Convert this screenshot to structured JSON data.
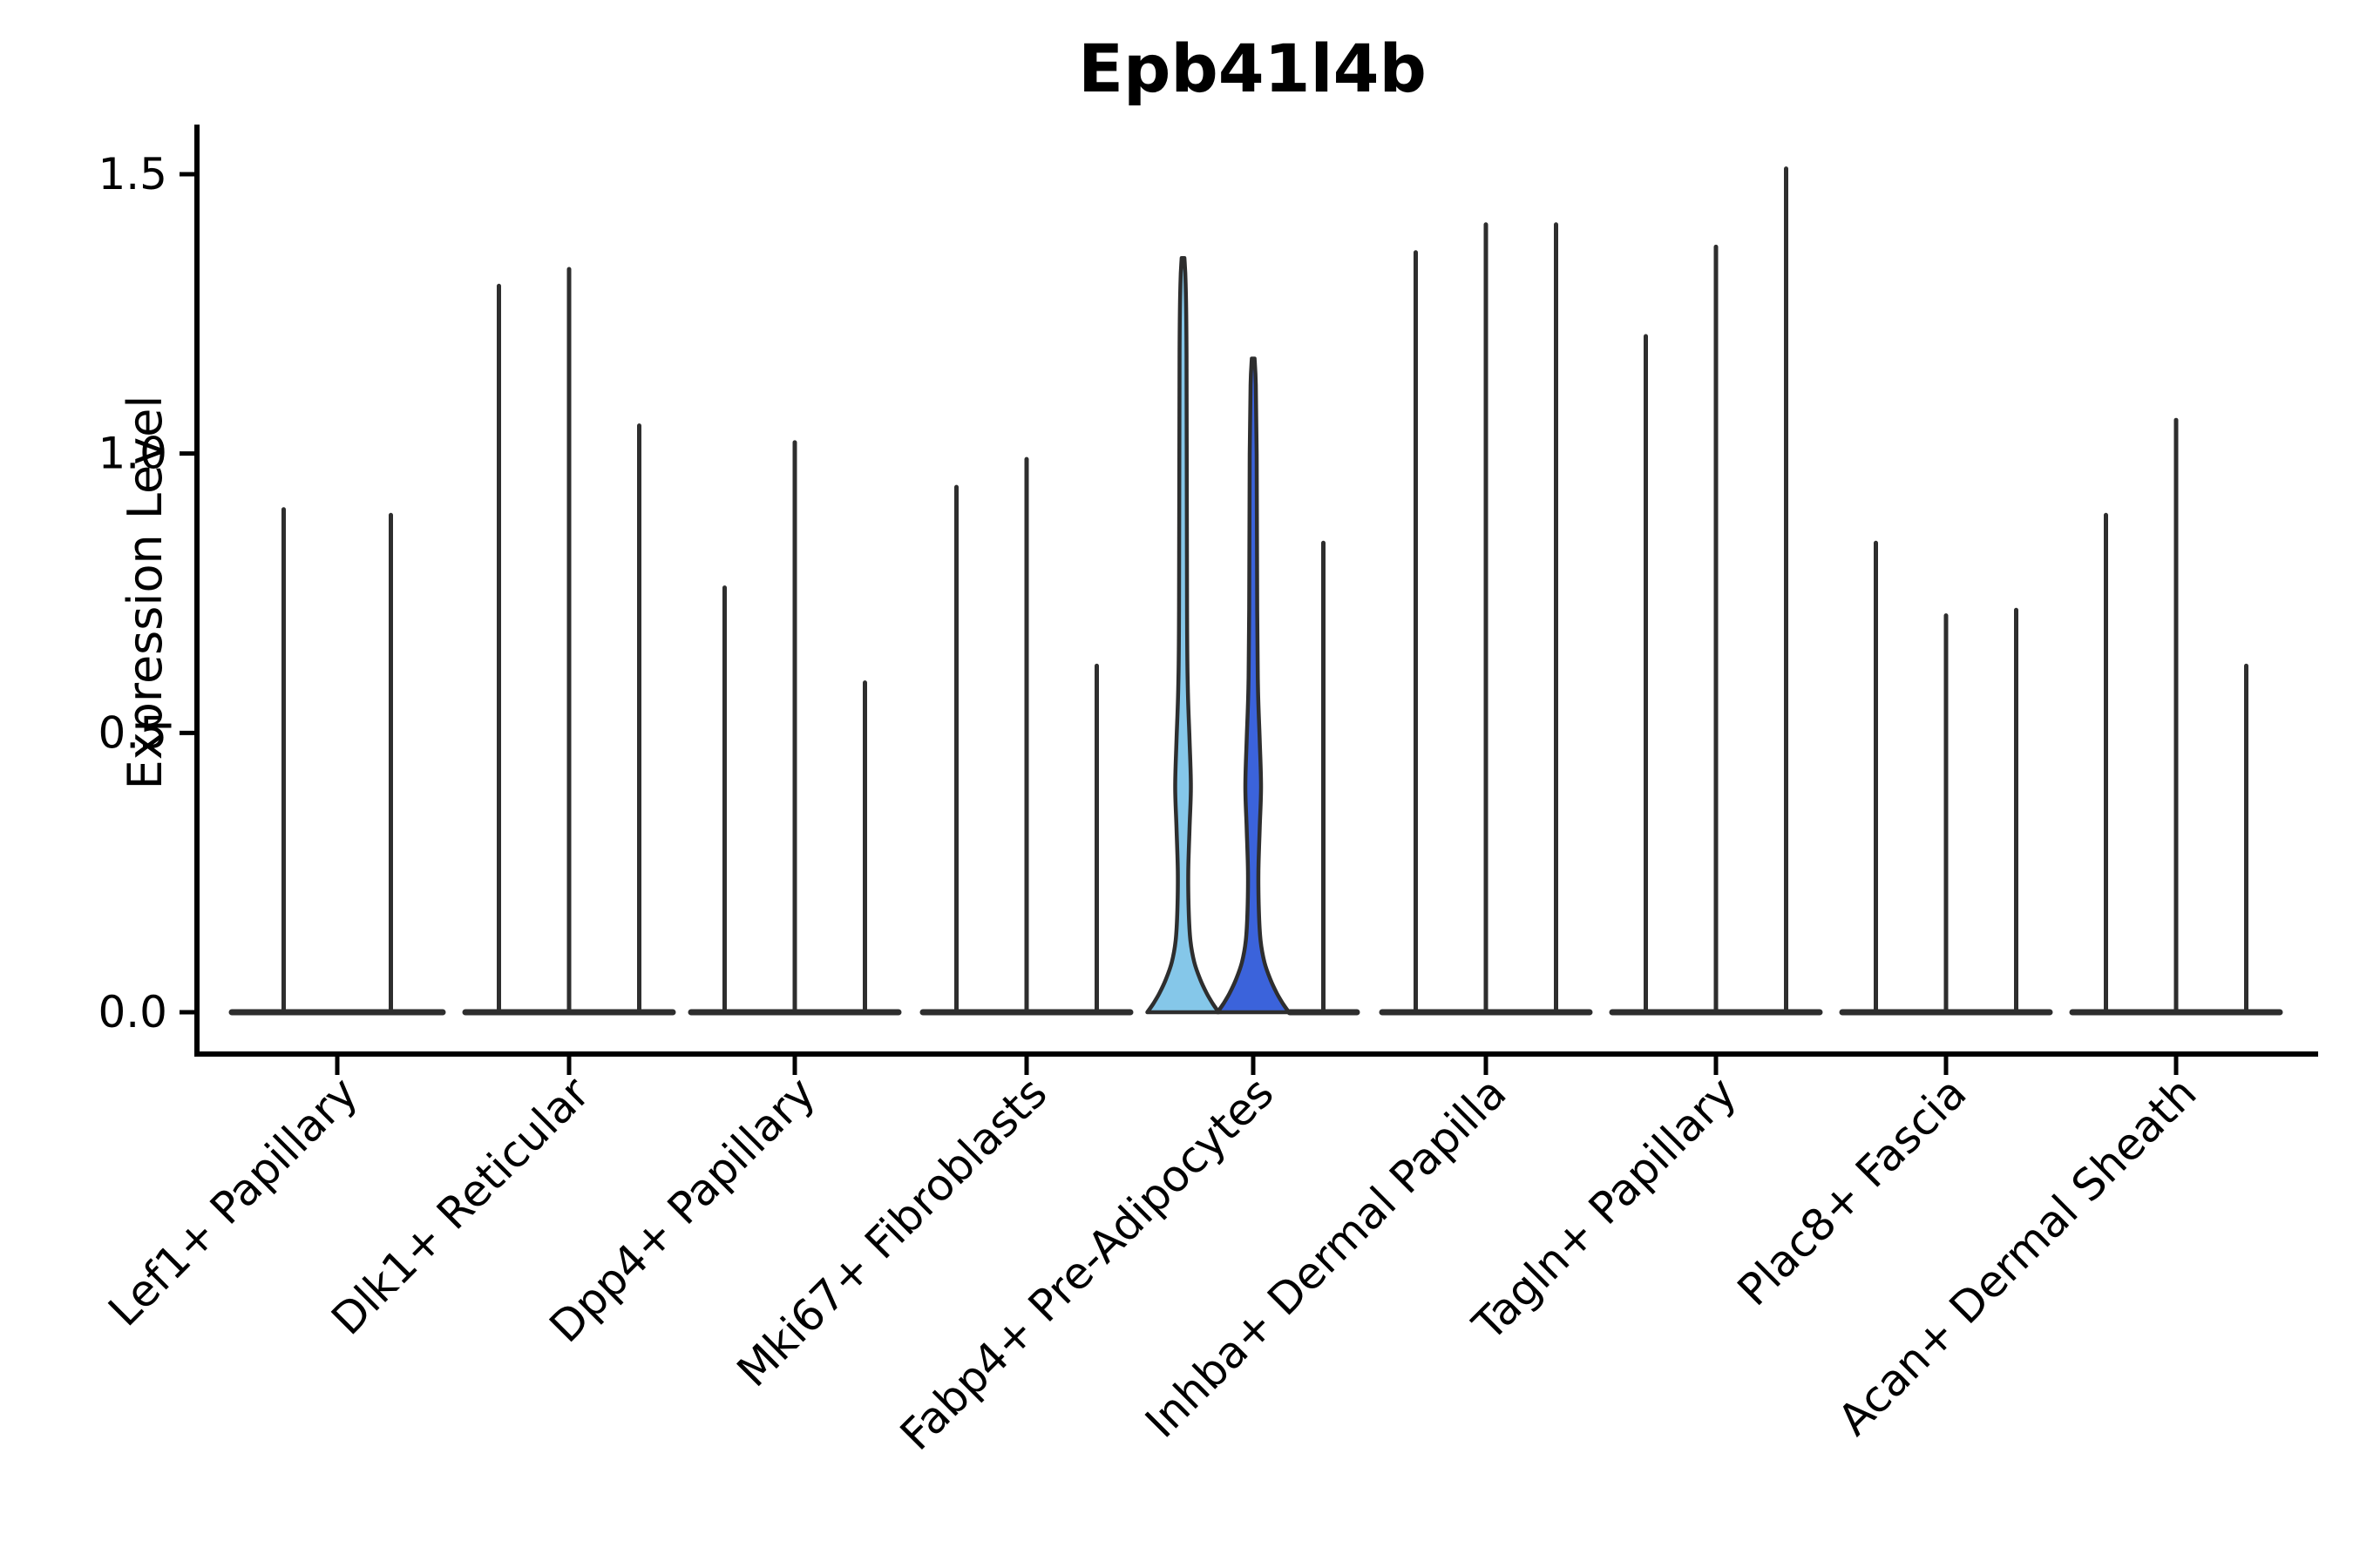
{
  "chart_data": {
    "type": "violin",
    "title": "Epb41l4b",
    "ylabel": "Expression Level",
    "xlabel": "",
    "ylim": [
      0,
      1.58
    ],
    "grid": false,
    "legend": null,
    "yticks": [
      {
        "label": "0.0",
        "value": 0.0
      },
      {
        "label": "0.5",
        "value": 0.5
      },
      {
        "label": "1.0",
        "value": 1.0
      },
      {
        "label": "1.5",
        "value": 1.5
      }
    ],
    "categories": [
      "Lef1+ Papillary",
      "Dlk1+ Reticular",
      "Dpp4+ Papillary",
      "Mki67+ Fibroblasts",
      "Fabp4+ Pre-Adipocytes",
      "Inhba+ Dermal Papilla",
      "Tagln+ Papillary",
      "Plac8+ Fascia",
      "Acan+ Dermal Sheath"
    ],
    "groups": [
      {
        "category": "Lef1+ Papillary",
        "violins": [
          {
            "max": 0.9
          },
          {
            "max": 0.89
          }
        ]
      },
      {
        "category": "Dlk1+ Reticular",
        "violins": [
          {
            "max": 1.3
          },
          {
            "max": 1.33
          },
          {
            "max": 1.05
          }
        ]
      },
      {
        "category": "Dpp4+ Papillary",
        "violins": [
          {
            "max": 0.76
          },
          {
            "max": 1.02
          },
          {
            "max": 0.59
          }
        ]
      },
      {
        "category": "Mki67+ Fibroblasts",
        "violins": [
          {
            "max": 0.94
          },
          {
            "max": 0.99
          },
          {
            "max": 0.62
          }
        ]
      },
      {
        "category": "Fabp4+ Pre-Adipocytes",
        "violins": [
          {
            "max": 1.35,
            "fill": "#85C7E9"
          },
          {
            "max": 1.17,
            "fill": "#3B63DB"
          },
          {
            "max": 0.84
          }
        ]
      },
      {
        "category": "Inhba+ Dermal Papilla",
        "violins": [
          {
            "max": 1.36
          },
          {
            "max": 1.41
          },
          {
            "max": 1.41
          }
        ]
      },
      {
        "category": "Tagln+ Papillary",
        "violins": [
          {
            "max": 1.21
          },
          {
            "max": 1.37
          },
          {
            "max": 1.51
          }
        ]
      },
      {
        "category": "Plac8+ Fascia",
        "violins": [
          {
            "max": 0.84
          },
          {
            "max": 0.71
          },
          {
            "max": 0.72
          }
        ]
      },
      {
        "category": "Acan+ Dermal Sheath",
        "violins": [
          {
            "max": 0.89
          },
          {
            "max": 1.06
          },
          {
            "max": 0.62
          }
        ]
      }
    ],
    "colors": {
      "edge": "#2e2e2e",
      "axis": "#000000",
      "highlight_light": "#85C7E9",
      "highlight_dark": "#3B63DB",
      "background": "#ffffff"
    }
  }
}
